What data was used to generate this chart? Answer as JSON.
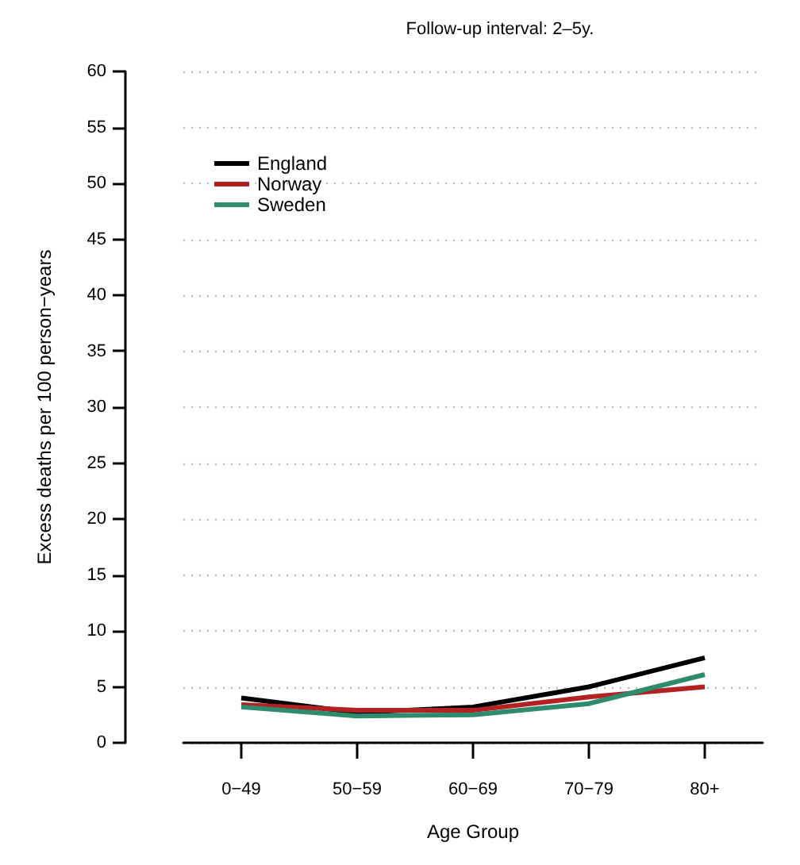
{
  "chart_data": {
    "type": "line",
    "title": "Follow-up interval: 2–5y.",
    "xlabel": "Age Group",
    "ylabel": "Excess deaths per 100 person−years",
    "categories": [
      "0−49",
      "50−59",
      "60−69",
      "70−79",
      "80+"
    ],
    "series": [
      {
        "name": "England",
        "color": "#000000",
        "values": [
          4.0,
          2.7,
          3.2,
          5.0,
          7.6
        ]
      },
      {
        "name": "Norway",
        "color": "#b22222",
        "values": [
          3.4,
          2.9,
          2.9,
          4.1,
          5.0
        ]
      },
      {
        "name": "Sweden",
        "color": "#2e8b6e",
        "values": [
          3.2,
          2.4,
          2.5,
          3.5,
          6.1
        ]
      }
    ],
    "ylim": [
      0,
      60
    ],
    "yticks": [
      0,
      5,
      10,
      15,
      20,
      25,
      30,
      35,
      40,
      45,
      50,
      55,
      60
    ],
    "grid": "y",
    "legend": "top left",
    "marker": "none",
    "line_style": "solid"
  }
}
